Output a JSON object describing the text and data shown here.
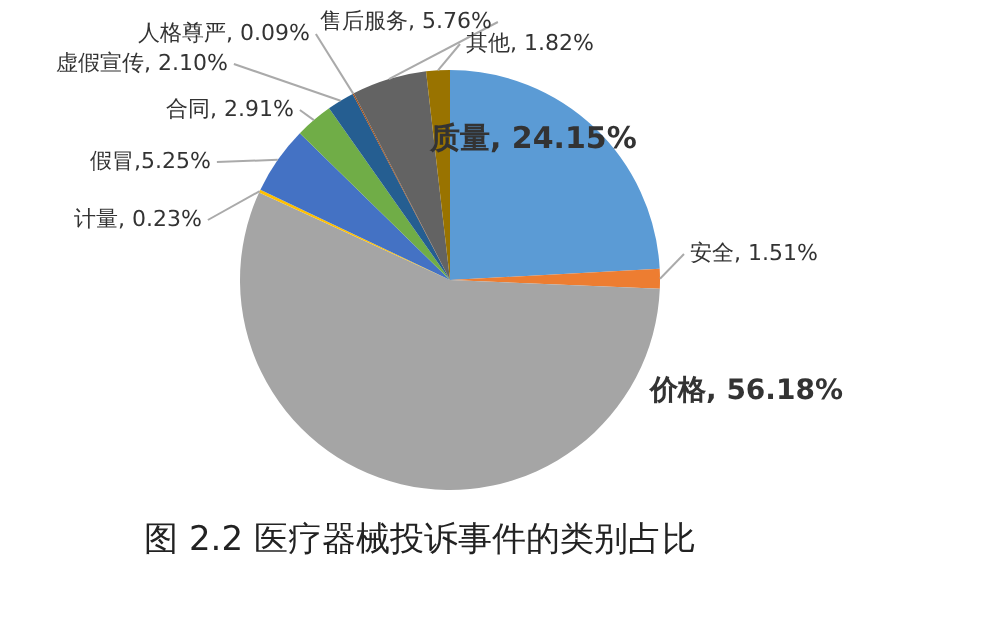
{
  "chart_data": {
    "type": "pie",
    "title": "图 2.2 医疗器械投诉事件的类别占比",
    "categories": [
      "质量, 24.15%",
      "安全, 1.51%",
      "价格, 56.18%",
      "计量, 0.23%",
      "假冒,5.25%",
      "合同, 2.91%",
      "虚假宣传, 2.10%",
      "人格尊严, 0.09%",
      "售后服务, 5.76%",
      "其他, 1.82%"
    ],
    "values": [
      24.15,
      1.51,
      56.18,
      0.23,
      5.25,
      2.91,
      2.1,
      0.09,
      5.76,
      1.82
    ],
    "colors": [
      "#5b9bd5",
      "#ed7d31",
      "#a5a5a5",
      "#ffc000",
      "#4472c4",
      "#70ad47",
      "#255e91",
      "#9e480e",
      "#636363",
      "#997300"
    ],
    "legend": false
  }
}
